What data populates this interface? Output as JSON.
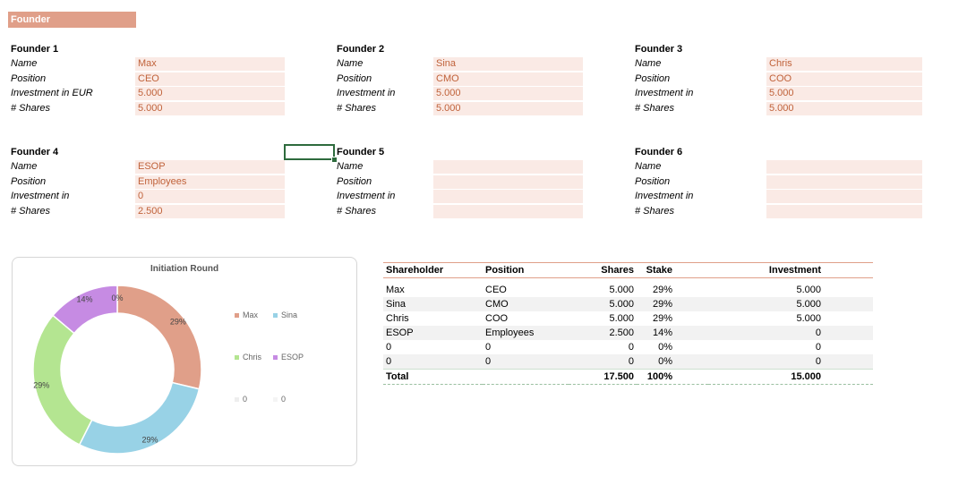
{
  "section_title": "Founder",
  "founders": [
    {
      "title": "Founder 1",
      "labels": [
        "Name",
        "Position",
        "Investment in EUR",
        "# Shares"
      ],
      "values": [
        "Max",
        "CEO",
        "5.000",
        "5.000"
      ]
    },
    {
      "title": "Founder 2",
      "labels": [
        "Name",
        "Position",
        "Investment in",
        "# Shares"
      ],
      "values": [
        "Sina",
        "CMO",
        "5.000",
        "5.000"
      ]
    },
    {
      "title": "Founder 3",
      "labels": [
        "Name",
        "Position",
        "Investment in",
        "# Shares"
      ],
      "values": [
        "Chris",
        "COO",
        "5.000",
        "5.000"
      ]
    },
    {
      "title": "Founder 4",
      "labels": [
        "Name",
        "Position",
        "Investment in",
        "# Shares"
      ],
      "values": [
        "ESOP",
        "Employees",
        "0",
        "2.500"
      ]
    },
    {
      "title": "Founder 5",
      "labels": [
        "Name",
        "Position",
        "Investment in",
        "# Shares"
      ],
      "values": [
        "",
        "",
        "",
        ""
      ]
    },
    {
      "title": "Founder 6",
      "labels": [
        "Name",
        "Position",
        "Investment in",
        "# Shares"
      ],
      "values": [
        "",
        "",
        "",
        ""
      ]
    }
  ],
  "chart_data": {
    "type": "pie",
    "title": "Initiation Round",
    "categories": [
      "Max",
      "Sina",
      "Chris",
      "ESOP",
      "0",
      "0"
    ],
    "values": [
      29,
      29,
      29,
      14,
      0,
      0
    ],
    "data_labels": [
      "29%",
      "29%",
      "29%",
      "14%",
      "0%",
      ""
    ],
    "colors": [
      "#e09f89",
      "#98d2e6",
      "#b4e591",
      "#c68be3",
      "#eeeeee",
      "#f4f4f4"
    ],
    "legend": "right"
  },
  "table": {
    "headers": [
      "Shareholder",
      "Position",
      "Shares",
      "Stake",
      "Investment"
    ],
    "rows": [
      [
        "Max",
        "CEO",
        "5.000",
        "29%",
        "5.000"
      ],
      [
        "Sina",
        "CMO",
        "5.000",
        "29%",
        "5.000"
      ],
      [
        "Chris",
        "COO",
        "5.000",
        "29%",
        "5.000"
      ],
      [
        "ESOP",
        "Employees",
        "2.500",
        "14%",
        "0"
      ],
      [
        "0",
        "0",
        "0",
        "0%",
        "0"
      ],
      [
        "0",
        "0",
        "0",
        "0%",
        "0"
      ]
    ],
    "total": [
      "Total",
      "",
      "17.500",
      "100%",
      "15.000"
    ]
  }
}
